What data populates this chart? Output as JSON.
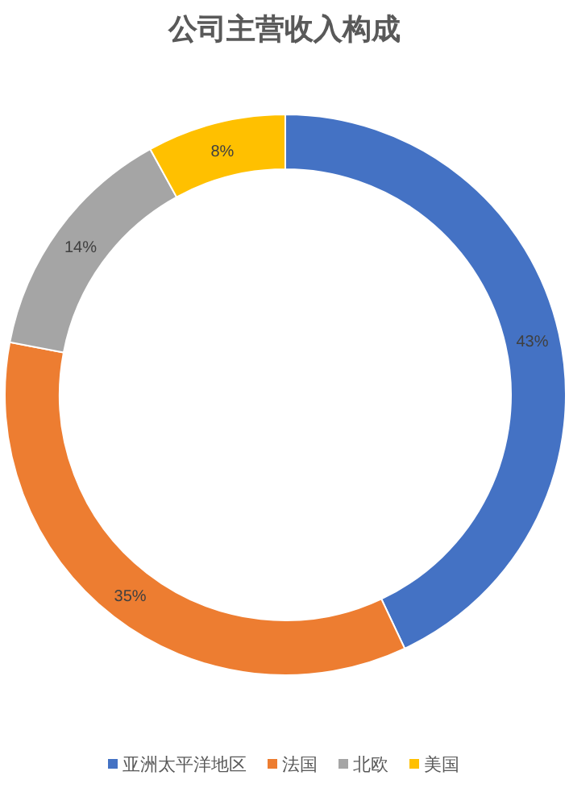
{
  "chart_data": {
    "type": "donut",
    "title": "公司主营收入构成",
    "categories": [
      "亚洲太平洋地区",
      "法国",
      "北欧",
      "美国"
    ],
    "values": [
      43,
      35,
      14,
      8
    ],
    "colors": [
      "#4472c4",
      "#ed7d31",
      "#a5a5a5",
      "#ffc000"
    ],
    "value_labels": [
      "43%",
      "35%",
      "14%",
      "8%"
    ],
    "legend": "bottom"
  }
}
